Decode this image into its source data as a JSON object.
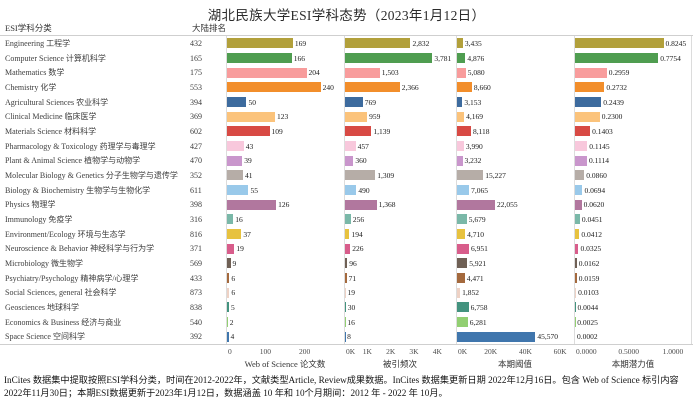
{
  "header": {
    "category_label": "ESI学科分类",
    "rank_label": "大陆排名"
  },
  "footer": {
    "line1": "InCites 数据集中提取按照ESI学科分类，时间在2012-2022年，文献类型Article, Review成果数据。InCites 数据集更新日期 2022年12月16日。包含 Web of Science 标引内容",
    "line2": "2022年11月30日；本期ESI数据更新于2023年1月12日，数据涵盖 10 年和 10个月期间：2012 年 - 2022 年 10月。"
  },
  "chart_data": {
    "type": "bar",
    "orientation": "horizontal",
    "title": "湖北民族大学ESI学科态势（2023年1月12日）",
    "categories_en": [
      "Engineering",
      "Computer Science",
      "Mathematics",
      "Chemistry",
      "Agricultural Sciences",
      "Clinical Medicine",
      "Materials Science",
      "Pharmacology & Toxicology",
      "Plant & Animal Science",
      "Molecular Biology & Genetics",
      "Biology & Biochemistry",
      "Physics",
      "Immunology",
      "Environment/Ecology",
      "Neuroscience & Behavior",
      "Microbiology",
      "Psychiatry/Psychology",
      "Social Sciences, general",
      "Geosciences",
      "Economics & Business",
      "Space Science"
    ],
    "categories_zh": [
      "工程学",
      "计算机科学",
      "数学",
      "化学",
      "农业科学",
      "临床医学",
      "材料科学",
      "药理学与毒理学",
      "植物学与动物学",
      "分子生物学与遗传学",
      "生物学与生物化学",
      "物理学",
      "免疫学",
      "环境与生态学",
      "神经科学与行为学",
      "微生物学",
      "精神病学/心理学",
      "社会科学",
      "地球科学",
      "经济与商业",
      "空间科学"
    ],
    "ranks": [
      432,
      165,
      175,
      553,
      394,
      369,
      602,
      427,
      470,
      352,
      611,
      398,
      316,
      816,
      371,
      569,
      433,
      873,
      838,
      540,
      392
    ],
    "row_colors": [
      "#b2a03b",
      "#4f9d50",
      "#f89c9c",
      "#f28e2b",
      "#3d6b9e",
      "#fbc37b",
      "#d84a44",
      "#f8c8dc",
      "#c996cc",
      "#b6ada7",
      "#99c9ea",
      "#b1779e",
      "#7ab8a8",
      "#e7c23f",
      "#d85d8b",
      "#6f6055",
      "#a4693d",
      "#eed2c5",
      "#43937f",
      "#92cf72",
      "#4076ad"
    ],
    "series": [
      {
        "key": "papers",
        "name": "Web of Science 论文数",
        "axis_max": 300,
        "tick_labels": [
          "0",
          "100",
          "200"
        ],
        "tick_values": [
          0,
          100,
          200
        ],
        "values": [
          169,
          166,
          204,
          240,
          50,
          123,
          109,
          43,
          39,
          41,
          55,
          126,
          16,
          37,
          19,
          9,
          6,
          6,
          5,
          2,
          4
        ],
        "labels": [
          "169",
          "166",
          "204",
          "240",
          "50",
          "123",
          "109",
          "43",
          "39",
          "41",
          "55",
          "126",
          "16",
          "37",
          "19",
          "9",
          "6",
          "6",
          "5",
          "2",
          "4"
        ]
      },
      {
        "key": "citations",
        "name": "被引频次",
        "axis_max": 4800,
        "tick_labels": [
          "0K",
          "1K",
          "2K",
          "3K",
          "4K"
        ],
        "tick_values": [
          0,
          1000,
          2000,
          3000,
          4000
        ],
        "values": [
          2832,
          3781,
          1503,
          2366,
          769,
          959,
          1139,
          457,
          360,
          1309,
          490,
          1368,
          256,
          194,
          226,
          96,
          71,
          19,
          30,
          16,
          8
        ],
        "labels": [
          "2,832",
          "3,781",
          "1,503",
          "2,366",
          "769",
          "959",
          "1,139",
          "457",
          "360",
          "1,309",
          "490",
          "1,368",
          "256",
          "194",
          "226",
          "96",
          "71",
          "19",
          "30",
          "16",
          "8"
        ]
      },
      {
        "key": "threshold",
        "name": "本期阈值",
        "axis_max": 68000,
        "tick_labels": [
          "0K",
          "20K",
          "40K",
          "60K"
        ],
        "tick_values": [
          0,
          20000,
          40000,
          60000
        ],
        "values": [
          3435,
          4876,
          5080,
          8660,
          3153,
          4169,
          8118,
          3990,
          3232,
          15227,
          7065,
          22055,
          5679,
          4710,
          6951,
          5921,
          4471,
          1852,
          6758,
          6281,
          45570
        ],
        "labels": [
          "3,435",
          "4,876",
          "5,080",
          "8,660",
          "3,153",
          "4,169",
          "8,118",
          "3,990",
          "3,232",
          "15,227",
          "7,065",
          "22,055",
          "5,679",
          "4,710",
          "6,951",
          "5,921",
          "4,471",
          "1,852",
          "6,758",
          "6,281",
          "45,570"
        ]
      },
      {
        "key": "potential",
        "name": "本期潜力值",
        "axis_max": 1.08,
        "tick_labels": [
          "0.0000",
          "0.5000",
          "1.0000"
        ],
        "tick_values": [
          0,
          0.5,
          1.0
        ],
        "values": [
          0.8245,
          0.7754,
          0.2959,
          0.2732,
          0.2439,
          0.23,
          0.1403,
          0.1145,
          0.1114,
          0.086,
          0.0694,
          0.062,
          0.0451,
          0.0412,
          0.0325,
          0.0162,
          0.0159,
          0.0103,
          0.0044,
          0.0025,
          0.0002
        ],
        "labels": [
          "0.8245",
          "0.7754",
          "0.2959",
          "0.2732",
          "0.2439",
          "0.2300",
          "0.1403",
          "0.1145",
          "0.1114",
          "0.0860",
          "0.0694",
          "0.0620",
          "0.0451",
          "0.0412",
          "0.0325",
          "0.0162",
          "0.0159",
          "0.0103",
          "0.0044",
          "0.0025",
          "0.0002"
        ]
      }
    ]
  }
}
